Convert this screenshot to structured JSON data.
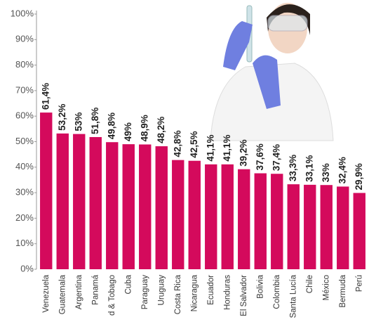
{
  "chart_data": {
    "type": "bar",
    "categories": [
      "Venezuela",
      "Guatemala",
      "Argentina",
      "Panamá",
      "d & Tobago",
      "Cuba",
      "Paraguay",
      "Uruguay",
      "Costa Rica",
      "Nicaragua",
      "Ecuador",
      "Honduras",
      "El Salvador",
      "Bolivia",
      "Colombia",
      "Santa Lucía",
      "Chile",
      "México",
      "Bermuda",
      "Perú"
    ],
    "values": [
      61.4,
      53.2,
      53,
      51.8,
      49.8,
      49,
      48.9,
      48.2,
      42.8,
      42.5,
      41.1,
      41.1,
      39.2,
      37.6,
      37.4,
      33.3,
      33.1,
      33,
      32.4,
      29.9
    ],
    "value_labels": [
      "61,4%",
      "53,2%",
      "53%",
      "51,8%",
      "49,8%",
      "49%",
      "48,9%",
      "48,2%",
      "42,8%",
      "42,5%",
      "41,1%",
      "41,1%",
      "39,2%",
      "37,6%",
      "37,4%",
      "33,3%",
      "33,1%",
      "33%",
      "32,4%",
      "29,9%"
    ],
    "color": "#d40a5c",
    "ylim": [
      0,
      100
    ],
    "yticks": [
      {
        "value": 0,
        "label": "0%"
      },
      {
        "value": 10,
        "label": "10%"
      },
      {
        "value": 20,
        "label": "20%"
      },
      {
        "value": 30,
        "label": "30%"
      },
      {
        "value": 40,
        "label": "40%"
      },
      {
        "value": 50,
        "label": "50%"
      },
      {
        "value": 60,
        "label": "60%"
      },
      {
        "value": 70,
        "label": "70%"
      },
      {
        "value": 80,
        "label": "80%"
      },
      {
        "value": 90,
        "label": "90%"
      },
      {
        "value": 100,
        "label": "100%"
      }
    ],
    "grid": false
  }
}
